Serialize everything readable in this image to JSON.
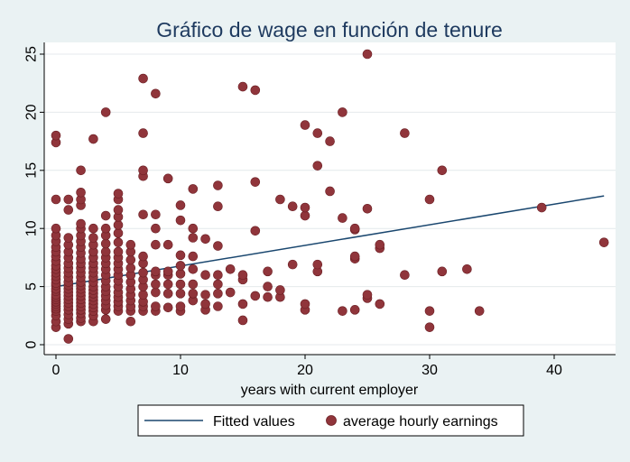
{
  "chart_data": {
    "type": "scatter",
    "title": "Gráfico de wage en función de tenure",
    "xlabel": "years with current employer",
    "ylabel": "",
    "xlim": [
      -1,
      45
    ],
    "ylim": [
      -1,
      26
    ],
    "xticks": [
      0,
      10,
      20,
      30,
      40
    ],
    "yticks": [
      0,
      5,
      10,
      15,
      20,
      25
    ],
    "grid": "horizontal",
    "legend_position": "bottom",
    "colors": {
      "background": "#eaf2f3",
      "plot_area": "#ffffff",
      "title": "#1e3a5f",
      "fit_line": "#1a476f",
      "points": "#90353b",
      "point_edge": "#6b1f24",
      "grid": "#e4e9ec"
    },
    "series": [
      {
        "name": "Fitted values",
        "type": "line",
        "x": [
          0,
          44
        ],
        "y": [
          5.0,
          12.8
        ]
      },
      {
        "name": "average hourly earnings",
        "type": "scatter",
        "points": [
          [
            0,
            1.5
          ],
          [
            0,
            2.0
          ],
          [
            0,
            2.5
          ],
          [
            0,
            2.9
          ],
          [
            0,
            3.1
          ],
          [
            0,
            3.3
          ],
          [
            0,
            3.5
          ],
          [
            0,
            3.7
          ],
          [
            0,
            3.9
          ],
          [
            0,
            4.1
          ],
          [
            0,
            4.3
          ],
          [
            0,
            4.6
          ],
          [
            0,
            4.8
          ],
          [
            0,
            5.1
          ],
          [
            0,
            5.3
          ],
          [
            0,
            5.6
          ],
          [
            0,
            5.9
          ],
          [
            0,
            6.2
          ],
          [
            0,
            6.5
          ],
          [
            0,
            6.8
          ],
          [
            0,
            7.2
          ],
          [
            0,
            7.6
          ],
          [
            0,
            8.0
          ],
          [
            0,
            8.4
          ],
          [
            0,
            8.9
          ],
          [
            0,
            9.4
          ],
          [
            0,
            10.0
          ],
          [
            0,
            12.5
          ],
          [
            0,
            17.4
          ],
          [
            0,
            18.0
          ],
          [
            1,
            0.5
          ],
          [
            1,
            1.8
          ],
          [
            1,
            2.2
          ],
          [
            1,
            2.6
          ],
          [
            1,
            3.0
          ],
          [
            1,
            3.3
          ],
          [
            1,
            3.6
          ],
          [
            1,
            3.9
          ],
          [
            1,
            4.2
          ],
          [
            1,
            4.5
          ],
          [
            1,
            4.8
          ],
          [
            1,
            5.1
          ],
          [
            1,
            5.4
          ],
          [
            1,
            5.8
          ],
          [
            1,
            6.2
          ],
          [
            1,
            6.6
          ],
          [
            1,
            7.0
          ],
          [
            1,
            7.5
          ],
          [
            1,
            8.0
          ],
          [
            1,
            8.6
          ],
          [
            1,
            9.2
          ],
          [
            1,
            11.6
          ],
          [
            1,
            12.5
          ],
          [
            2,
            2.0
          ],
          [
            2,
            2.3
          ],
          [
            2,
            2.7
          ],
          [
            2,
            3.0
          ],
          [
            2,
            3.3
          ],
          [
            2,
            3.6
          ],
          [
            2,
            3.9
          ],
          [
            2,
            4.2
          ],
          [
            2,
            4.5
          ],
          [
            2,
            4.8
          ],
          [
            2,
            5.1
          ],
          [
            2,
            5.4
          ],
          [
            2,
            5.8
          ],
          [
            2,
            6.2
          ],
          [
            2,
            6.6
          ],
          [
            2,
            7.0
          ],
          [
            2,
            7.4
          ],
          [
            2,
            7.9
          ],
          [
            2,
            8.4
          ],
          [
            2,
            8.9
          ],
          [
            2,
            9.4
          ],
          [
            2,
            10.0
          ],
          [
            2,
            10.4
          ],
          [
            2,
            12.0
          ],
          [
            2,
            12.5
          ],
          [
            2,
            13.1
          ],
          [
            2,
            15.0
          ],
          [
            3,
            2.0
          ],
          [
            3,
            2.5
          ],
          [
            3,
            2.9
          ],
          [
            3,
            3.2
          ],
          [
            3,
            3.5
          ],
          [
            3,
            3.8
          ],
          [
            3,
            4.1
          ],
          [
            3,
            4.4
          ],
          [
            3,
            4.7
          ],
          [
            3,
            5.0
          ],
          [
            3,
            5.4
          ],
          [
            3,
            5.8
          ],
          [
            3,
            6.2
          ],
          [
            3,
            6.6
          ],
          [
            3,
            7.0
          ],
          [
            3,
            7.5
          ],
          [
            3,
            8.0
          ],
          [
            3,
            8.6
          ],
          [
            3,
            9.2
          ],
          [
            3,
            10.0
          ],
          [
            3,
            17.7
          ],
          [
            4,
            2.2
          ],
          [
            4,
            3.0
          ],
          [
            4,
            3.4
          ],
          [
            4,
            3.8
          ],
          [
            4,
            4.2
          ],
          [
            4,
            4.6
          ],
          [
            4,
            5.0
          ],
          [
            4,
            5.5
          ],
          [
            4,
            6.0
          ],
          [
            4,
            6.5
          ],
          [
            4,
            7.0
          ],
          [
            4,
            7.5
          ],
          [
            4,
            8.0
          ],
          [
            4,
            8.7
          ],
          [
            4,
            9.4
          ],
          [
            4,
            10.0
          ],
          [
            4,
            11.1
          ],
          [
            4,
            20.0
          ],
          [
            5,
            2.9
          ],
          [
            5,
            3.3
          ],
          [
            5,
            3.7
          ],
          [
            5,
            4.1
          ],
          [
            5,
            4.5
          ],
          [
            5,
            5.0
          ],
          [
            5,
            5.5
          ],
          [
            5,
            6.0
          ],
          [
            5,
            6.5
          ],
          [
            5,
            7.0
          ],
          [
            5,
            7.5
          ],
          [
            5,
            8.0
          ],
          [
            5,
            8.8
          ],
          [
            5,
            9.6
          ],
          [
            5,
            10.3
          ],
          [
            5,
            11.0
          ],
          [
            5,
            11.6
          ],
          [
            5,
            12.5
          ],
          [
            5,
            13.0
          ],
          [
            6,
            2.0
          ],
          [
            6,
            2.9
          ],
          [
            6,
            3.3
          ],
          [
            6,
            3.8
          ],
          [
            6,
            4.3
          ],
          [
            6,
            4.8
          ],
          [
            6,
            5.4
          ],
          [
            6,
            6.0
          ],
          [
            6,
            6.6
          ],
          [
            6,
            7.3
          ],
          [
            6,
            8.0
          ],
          [
            6,
            8.6
          ],
          [
            7,
            2.9
          ],
          [
            7,
            3.3
          ],
          [
            7,
            3.7
          ],
          [
            7,
            4.3
          ],
          [
            7,
            5.0
          ],
          [
            7,
            5.6
          ],
          [
            7,
            6.2
          ],
          [
            7,
            7.0
          ],
          [
            7,
            7.6
          ],
          [
            7,
            11.2
          ],
          [
            7,
            14.5
          ],
          [
            7,
            15.0
          ],
          [
            7,
            18.2
          ],
          [
            7,
            22.9
          ],
          [
            8,
            2.9
          ],
          [
            8,
            3.3
          ],
          [
            8,
            4.5
          ],
          [
            8,
            5.2
          ],
          [
            8,
            6.0
          ],
          [
            8,
            6.3
          ],
          [
            8,
            8.6
          ],
          [
            8,
            10.0
          ],
          [
            8,
            11.2
          ],
          [
            8,
            21.6
          ],
          [
            9,
            3.2
          ],
          [
            9,
            4.4
          ],
          [
            9,
            5.2
          ],
          [
            9,
            6.0
          ],
          [
            9,
            6.3
          ],
          [
            9,
            8.6
          ],
          [
            9,
            14.3
          ],
          [
            10,
            2.9
          ],
          [
            10,
            3.3
          ],
          [
            10,
            4.4
          ],
          [
            10,
            5.2
          ],
          [
            10,
            6.1
          ],
          [
            10,
            6.8
          ],
          [
            10,
            7.7
          ],
          [
            10,
            10.7
          ],
          [
            10,
            12.0
          ],
          [
            11,
            3.8
          ],
          [
            11,
            4.4
          ],
          [
            11,
            5.2
          ],
          [
            11,
            6.5
          ],
          [
            11,
            7.6
          ],
          [
            11,
            9.2
          ],
          [
            11,
            10.0
          ],
          [
            11,
            13.4
          ],
          [
            12,
            3.0
          ],
          [
            12,
            3.5
          ],
          [
            12,
            4.3
          ],
          [
            12,
            6.0
          ],
          [
            12,
            9.1
          ],
          [
            13,
            3.3
          ],
          [
            13,
            4.4
          ],
          [
            13,
            5.2
          ],
          [
            13,
            6.0
          ],
          [
            13,
            8.5
          ],
          [
            13,
            11.9
          ],
          [
            13,
            13.7
          ],
          [
            14,
            4.5
          ],
          [
            14,
            6.5
          ],
          [
            15,
            2.1
          ],
          [
            15,
            3.5
          ],
          [
            15,
            5.6
          ],
          [
            15,
            6.0
          ],
          [
            15,
            22.2
          ],
          [
            16,
            4.2
          ],
          [
            16,
            9.8
          ],
          [
            16,
            14.0
          ],
          [
            16,
            21.9
          ],
          [
            17,
            4.1
          ],
          [
            17,
            5.0
          ],
          [
            17,
            6.3
          ],
          [
            18,
            4.1
          ],
          [
            18,
            4.7
          ],
          [
            18,
            12.5
          ],
          [
            19,
            6.9
          ],
          [
            19,
            11.9
          ],
          [
            20,
            3.0
          ],
          [
            20,
            3.5
          ],
          [
            20,
            11.1
          ],
          [
            20,
            11.8
          ],
          [
            20,
            18.9
          ],
          [
            21,
            6.3
          ],
          [
            21,
            6.9
          ],
          [
            21,
            15.4
          ],
          [
            21,
            18.2
          ],
          [
            22,
            13.2
          ],
          [
            22,
            17.5
          ],
          [
            23,
            2.9
          ],
          [
            23,
            10.9
          ],
          [
            23,
            20.0
          ],
          [
            24,
            3.0
          ],
          [
            24,
            7.4
          ],
          [
            24,
            7.6
          ],
          [
            24,
            9.9
          ],
          [
            24,
            10.0
          ],
          [
            25,
            4.0
          ],
          [
            25,
            4.3
          ],
          [
            25,
            11.7
          ],
          [
            25,
            25.0
          ],
          [
            26,
            3.5
          ],
          [
            26,
            8.3
          ],
          [
            26,
            8.6
          ],
          [
            28,
            6.0
          ],
          [
            28,
            18.2
          ],
          [
            30,
            1.5
          ],
          [
            30,
            2.9
          ],
          [
            30,
            12.5
          ],
          [
            31,
            6.3
          ],
          [
            31,
            15.0
          ],
          [
            33,
            6.5
          ],
          [
            34,
            2.9
          ],
          [
            39,
            11.8
          ],
          [
            44,
            8.8
          ]
        ]
      }
    ]
  }
}
